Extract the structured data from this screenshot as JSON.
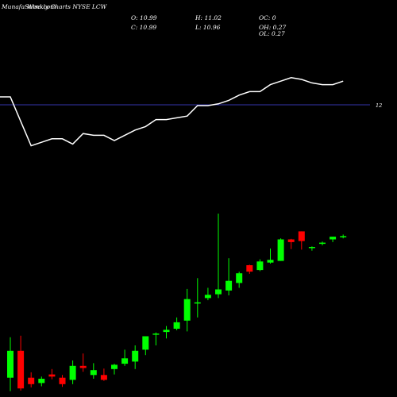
{
  "header": {
    "title": "MunafaSutra.com",
    "subtitle": "Weekly Charts NYSE LCW"
  },
  "ohlc": {
    "o_label": "O: 10.99",
    "h_label": "H: 11.02",
    "oc_label": "OC: 0",
    "c_label": "C: 10.99",
    "l_label": "L: 10.96",
    "oh_label": "OH: 0.27",
    "ol_label": "OL: 0.27"
  },
  "colors": {
    "background": "#000000",
    "up": "#00ff00",
    "down": "#ff0000",
    "line": "#ffffff",
    "hline": "#3333aa"
  },
  "chart_data": {
    "type": "candlestick",
    "price_line_value": 12,
    "price_line_label": "12",
    "ylim_price": [
      7.6,
      11.85
    ],
    "candles": [
      {
        "o": 7.9,
        "h": 8.65,
        "l": 7.65,
        "c": 8.4,
        "dir": "up"
      },
      {
        "o": 8.4,
        "h": 8.68,
        "l": 7.66,
        "c": 7.7,
        "dir": "down"
      },
      {
        "o": 7.9,
        "h": 8.0,
        "l": 7.72,
        "c": 7.78,
        "dir": "down"
      },
      {
        "o": 7.8,
        "h": 7.92,
        "l": 7.74,
        "c": 7.88,
        "dir": "up"
      },
      {
        "o": 7.96,
        "h": 8.06,
        "l": 7.87,
        "c": 7.92,
        "dir": "down"
      },
      {
        "o": 7.9,
        "h": 7.95,
        "l": 7.73,
        "c": 7.78,
        "dir": "down"
      },
      {
        "o": 7.86,
        "h": 8.22,
        "l": 7.78,
        "c": 8.12,
        "dir": "up"
      },
      {
        "o": 8.12,
        "h": 8.35,
        "l": 8.01,
        "c": 8.08,
        "dir": "down"
      },
      {
        "o": 7.95,
        "h": 8.17,
        "l": 7.88,
        "c": 8.04,
        "dir": "up"
      },
      {
        "o": 7.95,
        "h": 8.07,
        "l": 7.84,
        "c": 7.86,
        "dir": "down"
      },
      {
        "o": 8.06,
        "h": 8.16,
        "l": 7.96,
        "c": 8.14,
        "dir": "up"
      },
      {
        "o": 8.16,
        "h": 8.42,
        "l": 8.12,
        "c": 8.26,
        "dir": "up"
      },
      {
        "o": 8.2,
        "h": 8.5,
        "l": 8.06,
        "c": 8.4,
        "dir": "up"
      },
      {
        "o": 8.42,
        "h": 8.67,
        "l": 8.32,
        "c": 8.67,
        "dir": "up"
      },
      {
        "o": 8.7,
        "h": 8.74,
        "l": 8.5,
        "c": 8.72,
        "dir": "up"
      },
      {
        "o": 8.75,
        "h": 8.86,
        "l": 8.63,
        "c": 8.79,
        "dir": "up"
      },
      {
        "o": 8.81,
        "h": 9.02,
        "l": 8.78,
        "c": 8.93,
        "dir": "up"
      },
      {
        "o": 8.96,
        "h": 9.55,
        "l": 8.76,
        "c": 9.36,
        "dir": "up"
      },
      {
        "o": 9.28,
        "h": 9.75,
        "l": 9.02,
        "c": 9.3,
        "dir": "up"
      },
      {
        "o": 9.38,
        "h": 9.57,
        "l": 9.34,
        "c": 9.44,
        "dir": "up"
      },
      {
        "o": 9.45,
        "h": 10.95,
        "l": 9.38,
        "c": 9.54,
        "dir": "up"
      },
      {
        "o": 9.52,
        "h": 10.12,
        "l": 9.43,
        "c": 9.7,
        "dir": "up"
      },
      {
        "o": 9.66,
        "h": 9.87,
        "l": 9.57,
        "c": 9.84,
        "dir": "up"
      },
      {
        "o": 9.99,
        "h": 10.0,
        "l": 9.83,
        "c": 9.87,
        "dir": "down"
      },
      {
        "o": 9.9,
        "h": 10.1,
        "l": 9.88,
        "c": 10.06,
        "dir": "up"
      },
      {
        "o": 10.04,
        "h": 10.3,
        "l": 10.02,
        "c": 10.09,
        "dir": "up"
      },
      {
        "o": 10.07,
        "h": 10.49,
        "l": 10.07,
        "c": 10.47,
        "dir": "up"
      },
      {
        "o": 10.47,
        "h": 10.48,
        "l": 10.29,
        "c": 10.42,
        "dir": "down"
      },
      {
        "o": 10.62,
        "h": 10.62,
        "l": 10.28,
        "c": 10.44,
        "dir": "down"
      },
      {
        "o": 10.31,
        "h": 10.34,
        "l": 10.26,
        "c": 10.33,
        "dir": "up"
      },
      {
        "o": 10.41,
        "h": 10.43,
        "l": 10.36,
        "c": 10.41,
        "dir": "up"
      },
      {
        "o": 10.47,
        "h": 10.52,
        "l": 10.42,
        "c": 10.52,
        "dir": "up"
      },
      {
        "o": 10.53,
        "h": 10.56,
        "l": 10.49,
        "c": 10.53,
        "dir": "up"
      }
    ],
    "line_values": [
      11.2,
      11.06,
      10.92,
      10.94,
      10.96,
      10.96,
      10.93,
      10.99,
      10.98,
      10.98,
      10.95,
      10.98,
      11.01,
      11.03,
      11.07,
      11.07,
      11.08,
      11.09,
      11.15,
      11.15,
      11.16,
      11.18,
      11.21,
      11.23,
      11.23,
      11.27,
      11.29,
      11.31,
      11.3,
      11.28,
      11.27,
      11.27,
      11.29
    ]
  }
}
